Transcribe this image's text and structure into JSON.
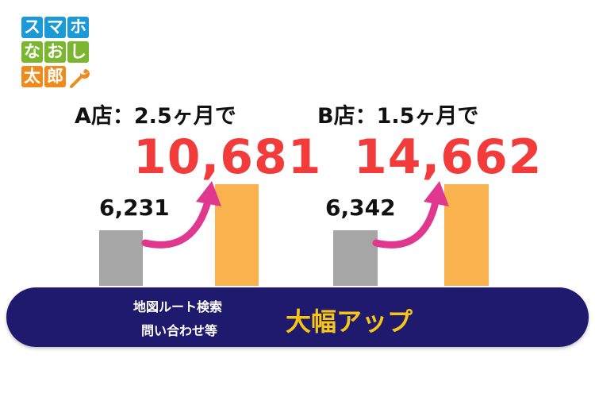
{
  "logo": {
    "rows": [
      [
        "ス",
        "マ",
        "ホ"
      ],
      [
        "な",
        "お",
        "し"
      ],
      [
        "太",
        "郎"
      ]
    ],
    "colors": {
      "row1": "#1a9ad6",
      "row2": "#7ab72e",
      "row3": "#ef8a1c"
    },
    "icon": "wrench-icon"
  },
  "chart_data": {
    "type": "bar",
    "groups": [
      {
        "title": "A店：2.5ヶ月で",
        "before_label": "6,231",
        "after_label": "10,681",
        "values": [
          6231,
          10681
        ]
      },
      {
        "title": "B店：1.5ヶ月で",
        "before_label": "6,342",
        "after_label": "14,662",
        "values": [
          6342,
          14662
        ]
      }
    ],
    "colors": {
      "before": "#a6a6a6",
      "after": "#f9b24e",
      "highlight": "#f23b3b",
      "arrow": "#e0388f"
    }
  },
  "banner": {
    "line1": "地図ルート検索",
    "line2": "問い合わせ等",
    "highlight": "大幅アップ",
    "bg_color": "#1f1a6e",
    "highlight_color": "#f5c518"
  }
}
